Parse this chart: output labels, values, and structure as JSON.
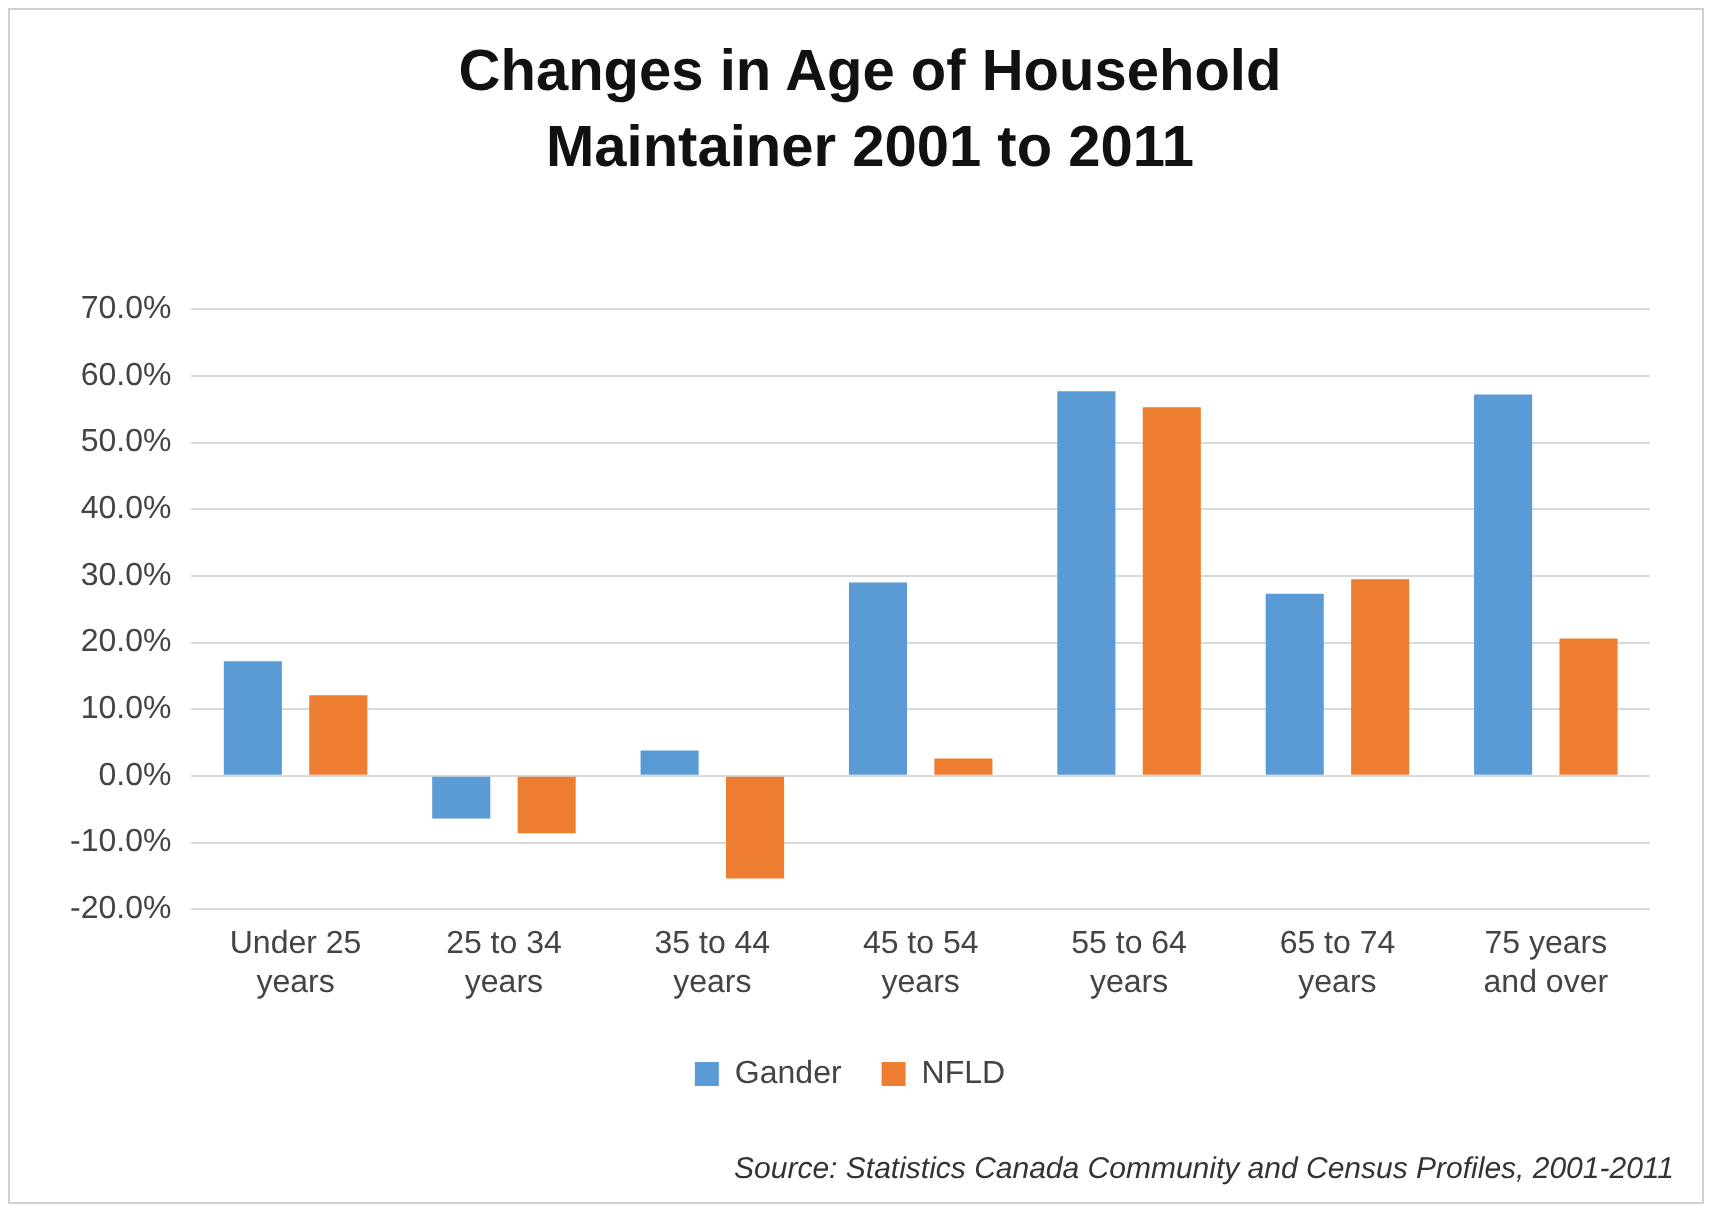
{
  "chart_data": {
    "type": "bar",
    "title": "Changes in Age of Household Maintainer 2001 to 2011",
    "categories": [
      "Under 25 years",
      "25 to 34 years",
      "35 to 44 years",
      "45 to 54 years",
      "55 to 64 years",
      "65 to 74 years",
      "75 years and over"
    ],
    "series": [
      {
        "name": "Gander",
        "color": "#5b9bd5",
        "values": [
          17.2,
          -6.4,
          3.8,
          29.0,
          57.7,
          27.3,
          57.2
        ]
      },
      {
        "name": "NFLD",
        "color": "#ed7d31",
        "values": [
          12.1,
          -8.6,
          -15.4,
          2.6,
          55.3,
          29.5,
          20.6
        ]
      }
    ],
    "ylim": [
      -20,
      70
    ],
    "yticks": [
      {
        "value": -20,
        "label": "-20.0%"
      },
      {
        "value": -10,
        "label": "-10.0%"
      },
      {
        "value": 0,
        "label": "0.0%"
      },
      {
        "value": 10,
        "label": "10.0%"
      },
      {
        "value": 20,
        "label": "20.0%"
      },
      {
        "value": 30,
        "label": "30.0%"
      },
      {
        "value": 40,
        "label": "40.0%"
      },
      {
        "value": 50,
        "label": "50.0%"
      },
      {
        "value": 60,
        "label": "60.0%"
      },
      {
        "value": 70,
        "label": "70.0%"
      }
    ],
    "grid": "y",
    "legend": "bottom",
    "annotations": [
      "Source: Statistics Canada Community and Census Profiles, 2001-2011"
    ]
  }
}
